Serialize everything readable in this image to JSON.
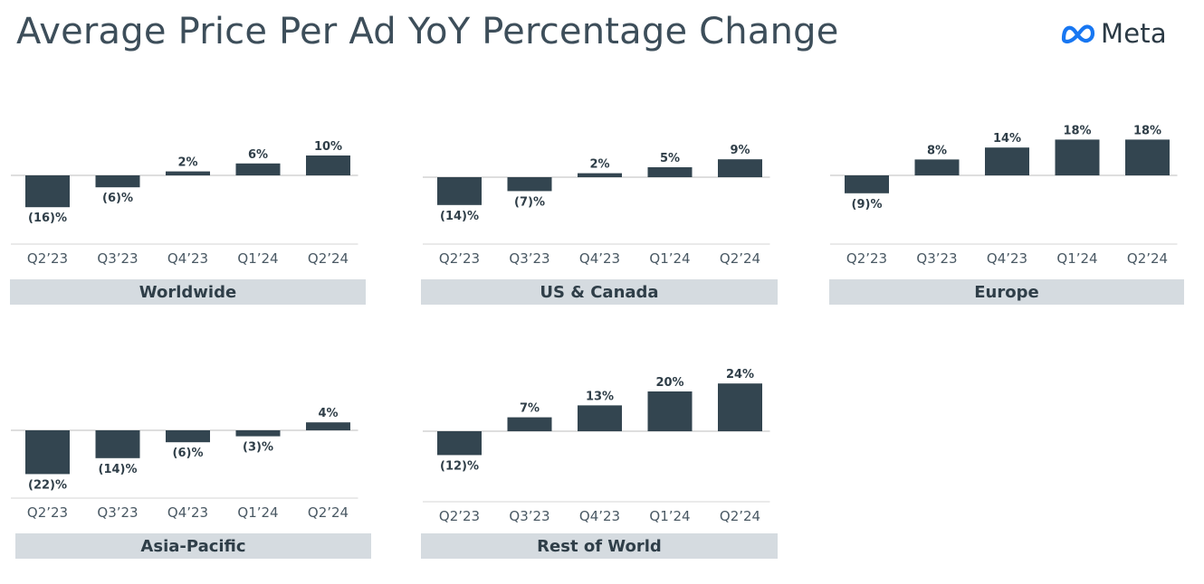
{
  "header": {
    "title": "Average Price Per Ad YoY Percentage Change",
    "logo_text": "Meta",
    "logo_icon": "meta-infinity-icon",
    "logo_color": "#1877f2"
  },
  "colors": {
    "bar": "#334550",
    "band": "#d5dbe0"
  },
  "chart_data": [
    {
      "type": "bar",
      "title": "Worldwide",
      "categories": [
        "Q2’23",
        "Q3’23",
        "Q4’23",
        "Q1’24",
        "Q2’24"
      ],
      "values": [
        -16,
        -6,
        2,
        6,
        10
      ],
      "labels": [
        "(16)%",
        "(6)%",
        "2%",
        "6%",
        "10%"
      ]
    },
    {
      "type": "bar",
      "title": "US & Canada",
      "categories": [
        "Q2’23",
        "Q3’23",
        "Q4’23",
        "Q1’24",
        "Q2’24"
      ],
      "values": [
        -14,
        -7,
        2,
        5,
        9
      ],
      "labels": [
        "(14)%",
        "(7)%",
        "2%",
        "5%",
        "9%"
      ]
    },
    {
      "type": "bar",
      "title": "Europe",
      "categories": [
        "Q2’23",
        "Q3’23",
        "Q4’23",
        "Q1’24",
        "Q2’24"
      ],
      "values": [
        -9,
        8,
        14,
        18,
        18
      ],
      "labels": [
        "(9)%",
        "8%",
        "14%",
        "18%",
        "18%"
      ]
    },
    {
      "type": "bar",
      "title": "Asia-Pacific",
      "categories": [
        "Q2’23",
        "Q3’23",
        "Q4’23",
        "Q1’24",
        "Q2’24"
      ],
      "values": [
        -22,
        -14,
        -6,
        -3,
        4
      ],
      "labels": [
        "(22)%",
        "(14)%",
        "(6)%",
        "(3)%",
        "4%"
      ]
    },
    {
      "type": "bar",
      "title": "Rest of World",
      "categories": [
        "Q2’23",
        "Q3’23",
        "Q4’23",
        "Q1’24",
        "Q2’24"
      ],
      "values": [
        -12,
        7,
        13,
        20,
        24
      ],
      "labels": [
        "(12)%",
        "7%",
        "13%",
        "20%",
        "24%"
      ]
    }
  ]
}
